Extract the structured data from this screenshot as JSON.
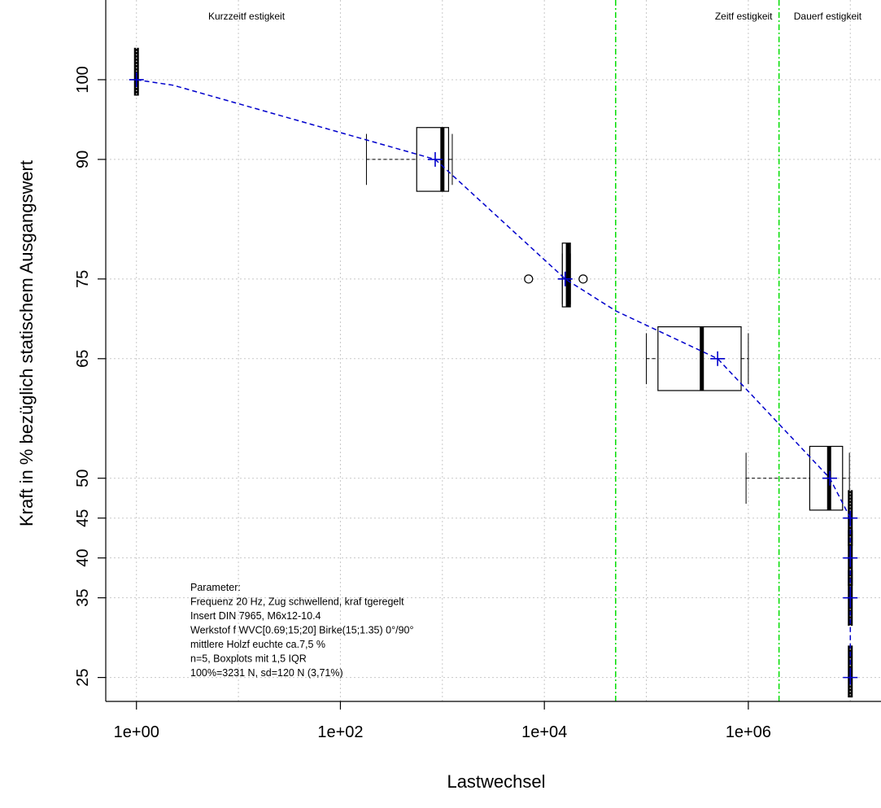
{
  "chart_data": {
    "type": "boxplot",
    "xlabel": "Lastwechsel",
    "ylabel": "Kraft in % bezüglich statischem Ausgangswert",
    "x_scale": "log10",
    "xlim": [
      0.5,
      20000000
    ],
    "ylim": [
      22,
      110
    ],
    "x_ticks": [
      {
        "value": 1,
        "label": "1e+00"
      },
      {
        "value": 100,
        "label": "1e+02"
      },
      {
        "value": 10000,
        "label": "1e+04"
      },
      {
        "value": 1000000,
        "label": "1e+06"
      }
    ],
    "y_ticks": [
      {
        "value": 25,
        "label": "25"
      },
      {
        "value": 35,
        "label": "35"
      },
      {
        "value": 40,
        "label": "40"
      },
      {
        "value": 45,
        "label": "45"
      },
      {
        "value": 50,
        "label": "50"
      },
      {
        "value": 65,
        "label": "65"
      },
      {
        "value": 75,
        "label": "75"
      },
      {
        "value": 90,
        "label": "90"
      },
      {
        "value": 100,
        "label": "100"
      }
    ],
    "grid": true,
    "regions": [
      {
        "label": "Kurzzeitf estigkeit",
        "x_center": 12
      },
      {
        "label": "Zeitf estigkeit",
        "x_center": 900000
      },
      {
        "label": "Dauerf estigkeit",
        "x_center": 6000000
      }
    ],
    "region_boundaries": [
      {
        "x": 50000,
        "color": "#00dd00"
      },
      {
        "x": 2000000,
        "color": "#00dd00"
      }
    ],
    "boxes": [
      {
        "level": 100,
        "whisker_low": 1,
        "q1": 1,
        "median": 1,
        "q3": 1,
        "whisker_high": 1,
        "y_low": 98,
        "y_high": 104,
        "kind": "collapsed",
        "mean": 1,
        "outliers": []
      },
      {
        "level": 90,
        "whisker_low": 180,
        "q1": 560,
        "median": 1000,
        "q3": 1150,
        "whisker_high": 1250,
        "y_low": 86,
        "y_high": 94,
        "kind": "box",
        "mean": 850,
        "outliers": []
      },
      {
        "level": 75,
        "whisker_low": 15000,
        "q1": 15000,
        "median": 17000,
        "q3": 18000,
        "whisker_high": 18000,
        "y_low": 71.5,
        "y_high": 79.5,
        "kind": "box",
        "mean": 16000,
        "outliers": [
          7000,
          24000
        ]
      },
      {
        "level": 65,
        "whisker_low": 100000,
        "q1": 130000,
        "median": 350000,
        "q3": 850000,
        "whisker_high": 1000000,
        "y_low": 61,
        "y_high": 69,
        "kind": "box",
        "mean": 500000,
        "outliers": []
      },
      {
        "level": 50,
        "whisker_low": 950000,
        "q1": 4000000,
        "median": 6200000,
        "q3": 8400000,
        "whisker_high": 9800000,
        "y_low": 46,
        "y_high": 54,
        "kind": "box",
        "mean": 6300000,
        "outliers": []
      },
      {
        "level": 45,
        "whisker_low": 10000000,
        "q1": 10000000,
        "median": 10000000,
        "q3": 10000000,
        "whisker_high": 10000000,
        "y_low": 41.5,
        "y_high": 48.5,
        "kind": "collapsed",
        "mean": 10000000,
        "outliers": []
      },
      {
        "level": 40,
        "whisker_low": 10000000,
        "q1": 10000000,
        "median": 10000000,
        "q3": 10000000,
        "whisker_high": 10000000,
        "y_low": 36.5,
        "y_high": 43.5,
        "kind": "collapsed",
        "mean": 10000000,
        "outliers": []
      },
      {
        "level": 35,
        "whisker_low": 10000000,
        "q1": 10000000,
        "median": 10000000,
        "q3": 10000000,
        "whisker_high": 10000000,
        "y_low": 31.5,
        "y_high": 38.5,
        "kind": "collapsed",
        "mean": 10000000,
        "outliers": []
      },
      {
        "level": 25,
        "whisker_low": 10000000,
        "q1": 10000000,
        "median": 10000000,
        "q3": 10000000,
        "whisker_high": 10000000,
        "y_low": 22.5,
        "y_high": 29,
        "kind": "collapsed",
        "mean": 10000000,
        "outliers": []
      }
    ],
    "mean_line": {
      "color": "#0000cc",
      "points": [
        [
          1,
          100
        ],
        [
          2.3,
          99.3
        ],
        [
          850,
          90
        ],
        [
          16000,
          75
        ],
        [
          50000,
          71
        ],
        [
          500000,
          65
        ],
        [
          6300000,
          50
        ],
        [
          10000000,
          45
        ],
        [
          10000000,
          40
        ],
        [
          10000000,
          35
        ],
        [
          10000000,
          25
        ]
      ]
    },
    "annotation": [
      "Parameter:",
      "Frequenz 20 Hz, Zug schwellend, kraf tgeregelt",
      "Insert DIN 7965, M6x12-10.4",
      "Werkstof f WVC[0.69;15;20] Birke(15;1.35) 0°/90°",
      "mittlere Holzf euchte ca.7,5 %",
      "n=5, Boxplots mit 1,5 IQR",
      "100%=3231 N, sd=120 N (3,71%)"
    ]
  }
}
